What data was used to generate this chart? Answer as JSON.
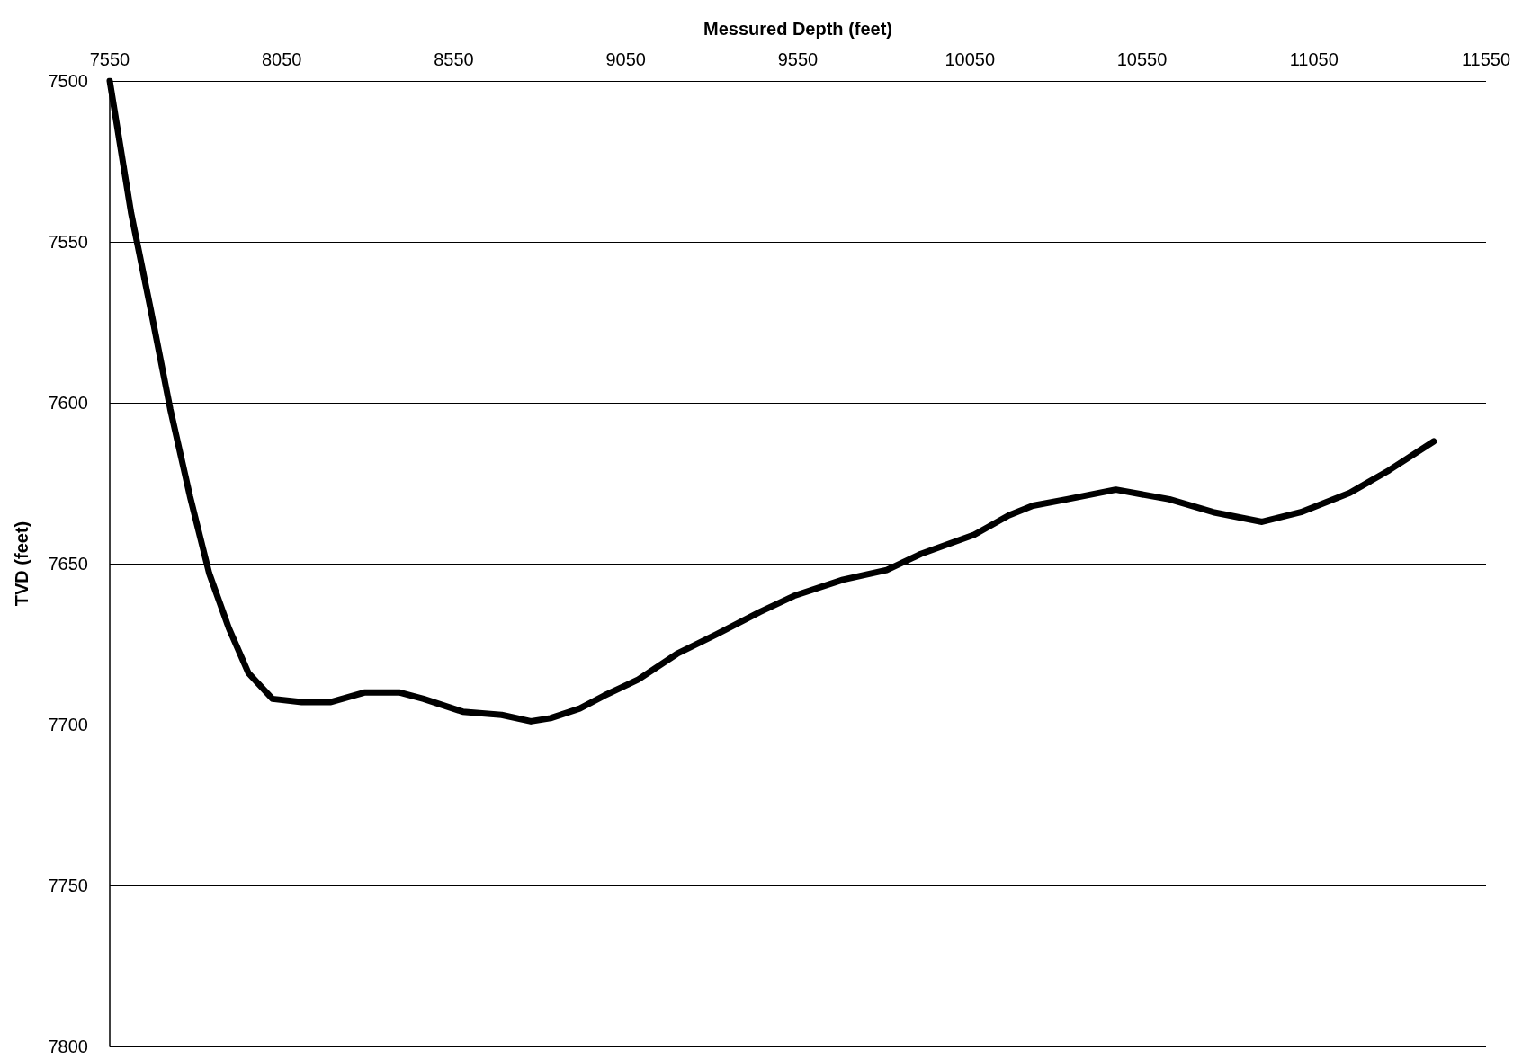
{
  "chart_data": {
    "type": "line",
    "xlabel": "Messured Depth (feet)",
    "ylabel": "TVD (feet)",
    "xlim": [
      7550,
      11550
    ],
    "xticks": [
      7550,
      8050,
      8550,
      9050,
      9550,
      10050,
      10550,
      11050,
      11550
    ],
    "ylim": [
      7800,
      7500
    ],
    "yticks": [
      7500,
      7550,
      7600,
      7650,
      7700,
      7750,
      7800
    ],
    "grid": "y",
    "marker": "none",
    "line_style": "solid",
    "series": [
      {
        "color": "#000000",
        "x": [
          7550,
          7612,
          7669,
          7726,
          7783,
          7839,
          7896,
          7953,
          8023,
          8108,
          8193,
          8292,
          8391,
          8462,
          8576,
          8689,
          8774,
          8831,
          8916,
          8987,
          9086,
          9199,
          9312,
          9440,
          9539,
          9681,
          9808,
          9907,
          10063,
          10163,
          10233,
          10332,
          10474,
          10630,
          10757,
          10899,
          11012,
          11154,
          11268,
          11398
        ],
        "values": [
          7500,
          7541,
          7571,
          7602,
          7629,
          7653,
          7670,
          7684,
          7692,
          7693,
          7693,
          7690,
          7690,
          7692,
          7696,
          7697,
          7699,
          7698,
          7695,
          7691,
          7686,
          7678,
          7672,
          7665,
          7660,
          7655,
          7652,
          7647,
          7641,
          7635,
          7632,
          7630,
          7627,
          7630,
          7634,
          7637,
          7634,
          7628,
          7621,
          7612
        ]
      }
    ]
  }
}
